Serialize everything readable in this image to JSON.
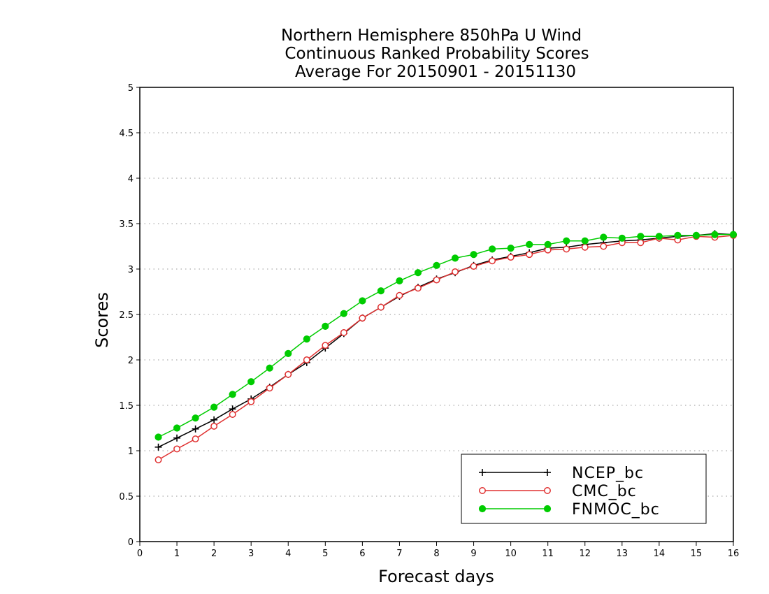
{
  "chart_data": {
    "type": "line",
    "title_lines": [
      "Northern Hemisphere 850hPa U Wind",
      "Continuous Ranked Probability Scores",
      "Average For 20150901 - 20151130"
    ],
    "xlabel": "Forecast days",
    "ylabel": "Scores",
    "xlim": [
      0,
      16
    ],
    "ylim": [
      0,
      5
    ],
    "x_ticks": [
      0,
      1,
      2,
      3,
      4,
      5,
      6,
      7,
      8,
      9,
      10,
      11,
      12,
      13,
      14,
      15,
      16
    ],
    "y_ticks": [
      0,
      0.5,
      1,
      1.5,
      2,
      2.5,
      3,
      3.5,
      4,
      4.5,
      5
    ],
    "y_tick_labels": [
      "0",
      "0.5",
      "1",
      "1.5",
      "2",
      "2.5",
      "3",
      "3.5",
      "4",
      "4.5",
      "5"
    ],
    "grid": "horizontal dotted",
    "legend_position": "bottom-right",
    "x": [
      0.5,
      1,
      1.5,
      2,
      2.5,
      3,
      3.5,
      4,
      4.5,
      5,
      5.5,
      6,
      6.5,
      7,
      7.5,
      8,
      8.5,
      9,
      9.5,
      10,
      10.5,
      11,
      11.5,
      12,
      12.5,
      13,
      13.5,
      14,
      14.5,
      15,
      15.5,
      16
    ],
    "series": [
      {
        "name": "NCEP_bc",
        "color": "#000000",
        "marker": "plus",
        "values": [
          1.04,
          1.14,
          1.24,
          1.34,
          1.46,
          1.57,
          1.7,
          1.84,
          1.97,
          2.13,
          2.29,
          2.46,
          2.58,
          2.7,
          2.8,
          2.89,
          2.96,
          3.04,
          3.1,
          3.14,
          3.18,
          3.23,
          3.24,
          3.27,
          3.29,
          3.31,
          3.32,
          3.34,
          3.36,
          3.37,
          3.39,
          3.38
        ]
      },
      {
        "name": "CMC_bc",
        "color": "#e03030",
        "marker": "open-circle",
        "values": [
          0.9,
          1.02,
          1.13,
          1.27,
          1.4,
          1.54,
          1.69,
          1.84,
          2.0,
          2.16,
          2.3,
          2.46,
          2.58,
          2.71,
          2.79,
          2.88,
          2.97,
          3.03,
          3.09,
          3.13,
          3.16,
          3.21,
          3.22,
          3.24,
          3.25,
          3.29,
          3.29,
          3.34,
          3.32,
          3.36,
          3.35,
          3.37
        ]
      },
      {
        "name": "FNMOC_bc",
        "color": "#00cc00",
        "marker": "filled-circle",
        "values": [
          1.15,
          1.25,
          1.36,
          1.48,
          1.62,
          1.76,
          1.91,
          2.07,
          2.23,
          2.37,
          2.51,
          2.65,
          2.76,
          2.87,
          2.96,
          3.04,
          3.12,
          3.16,
          3.22,
          3.23,
          3.27,
          3.27,
          3.31,
          3.31,
          3.35,
          3.34,
          3.36,
          3.36,
          3.37,
          3.37,
          3.38,
          3.38
        ]
      }
    ]
  }
}
